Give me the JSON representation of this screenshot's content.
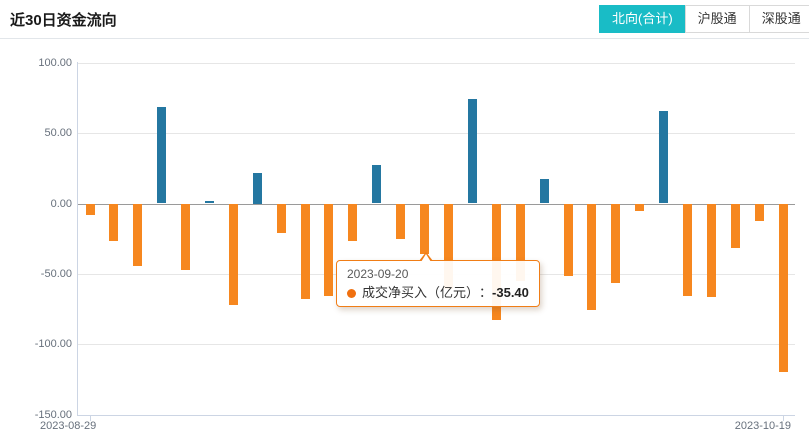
{
  "header": {
    "title": "近30日资金流向",
    "tabs": [
      {
        "label": "北向(合计)",
        "active": true
      },
      {
        "label": "沪股通",
        "active": false
      },
      {
        "label": "深股通",
        "active": false
      }
    ]
  },
  "colors": {
    "positive_bar": "#2477a1",
    "negative_bar": "#f6871f",
    "active_tab": "#19bcc6",
    "tooltip_border": "#f07d16",
    "grid": "#e6e6e6",
    "zero_line": "#9a9a9a",
    "axis": "#ccd5e4",
    "tick_label": "#67707c"
  },
  "chart_data": {
    "type": "bar",
    "title": "近30日资金流向",
    "series_name": "成交净买入（亿元）",
    "values": [
      -8,
      -26,
      -44,
      68.5,
      -47,
      2,
      -72,
      22,
      -20.5,
      -67.5,
      -65,
      -26,
      27.5,
      -25,
      -35.4,
      -60,
      74,
      -82.5,
      -55,
      17.5,
      -51,
      -75.5,
      -56,
      -5,
      66,
      -65.5,
      -66,
      -31.5,
      -12,
      -119
    ],
    "highlight_index": 14,
    "ylim": [
      -150,
      100
    ],
    "y_ticks": [
      100,
      50,
      0,
      -50,
      -100,
      -150
    ],
    "y_tick_labels": [
      "100.00",
      "50.00",
      "0.00",
      "-50.00",
      "-100.00",
      "-150.00"
    ],
    "x_labels": [
      "2023-08-29",
      "2023-10-19"
    ],
    "grid": "horizontal gridlines at 50-unit steps, zero line emphasized",
    "legend_position": "none"
  },
  "tooltip": {
    "date": "2023-09-20",
    "series_label": "成交净买入（亿元）",
    "separator": "：",
    "value": "-35.40"
  }
}
